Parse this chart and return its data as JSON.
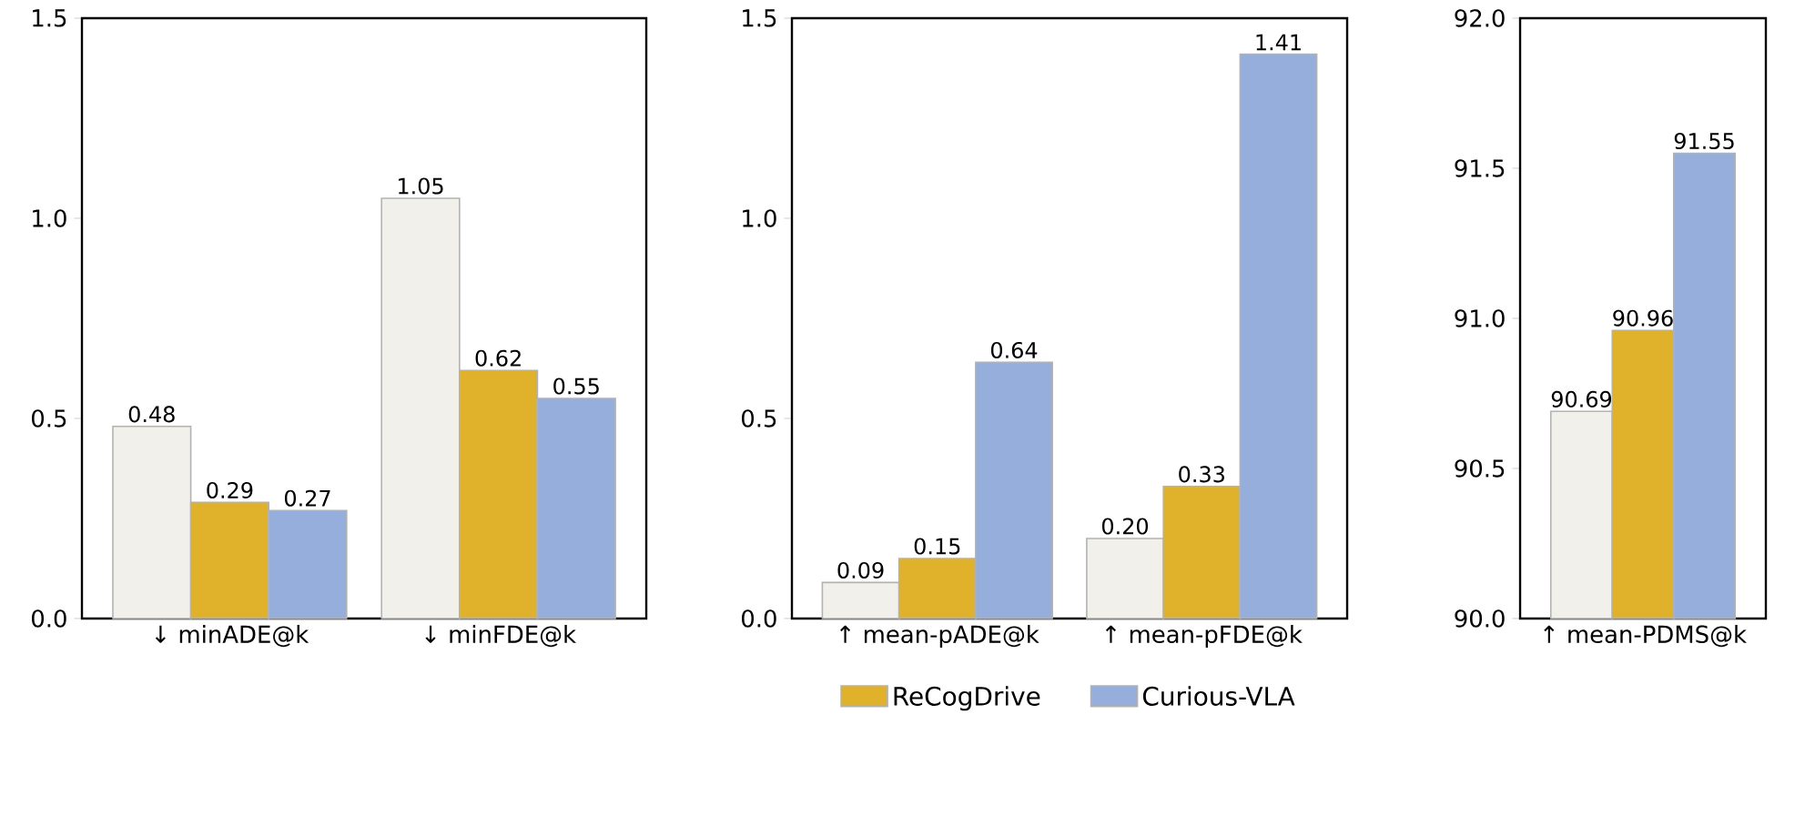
{
  "chart_data": [
    {
      "type": "bar",
      "categories": [
        "↓ minADE@k",
        "↓ minFDE@k"
      ],
      "ylim": [
        0,
        1.5
      ],
      "yticks": [
        {
          "value": 0,
          "label": "0.0"
        },
        {
          "value": 0.5,
          "label": "0.5"
        },
        {
          "value": 1.0,
          "label": "1.0"
        },
        {
          "value": 1.5,
          "label": "1.5"
        }
      ],
      "series": [
        {
          "color": "#f2f0eb",
          "values": [
            0.48,
            1.05
          ],
          "value_labels": [
            "0.48",
            "1.05"
          ]
        },
        {
          "color": "#e0b12a",
          "values": [
            0.29,
            0.62
          ],
          "value_labels": [
            "0.29",
            "0.62"
          ]
        },
        {
          "color": "#96aedb",
          "values": [
            0.27,
            0.55
          ],
          "value_labels": [
            "0.27",
            "0.55"
          ]
        }
      ]
    },
    {
      "type": "bar",
      "categories": [
        "↑ mean-pADE@k",
        "↑ mean-pFDE@k"
      ],
      "ylim": [
        0,
        1.5
      ],
      "yticks": [
        {
          "value": 0,
          "label": "0.0"
        },
        {
          "value": 0.5,
          "label": "0.5"
        },
        {
          "value": 1.0,
          "label": "1.0"
        },
        {
          "value": 1.5,
          "label": "1.5"
        }
      ],
      "legend": "bottom",
      "series": [
        {
          "color": "#f2f0eb",
          "values": [
            0.09,
            0.2
          ],
          "value_labels": [
            "0.09",
            "0.20"
          ]
        },
        {
          "name": "ReCogDrive",
          "color": "#e0b12a",
          "values": [
            0.15,
            0.33
          ],
          "value_labels": [
            "0.15",
            "0.33"
          ]
        },
        {
          "name": "Curious-VLA",
          "color": "#96aedb",
          "values": [
            0.64,
            1.41
          ],
          "value_labels": [
            "0.64",
            "1.41"
          ]
        }
      ]
    },
    {
      "type": "bar",
      "categories": [
        "↑ mean-PDMS@k"
      ],
      "ylim": [
        90,
        92
      ],
      "yticks": [
        {
          "value": 90,
          "label": "90.0"
        },
        {
          "value": 90.5,
          "label": "90.5"
        },
        {
          "value": 91,
          "label": "91.0"
        },
        {
          "value": 91.5,
          "label": "91.5"
        },
        {
          "value": 92,
          "label": "92.0"
        }
      ],
      "series": [
        {
          "color": "#f2f0eb",
          "values": [
            90.69
          ],
          "value_labels": [
            "90.69"
          ]
        },
        {
          "color": "#e0b12a",
          "values": [
            90.96
          ],
          "value_labels": [
            "90.96"
          ]
        },
        {
          "color": "#96aedb",
          "values": [
            91.55
          ],
          "value_labels": [
            "91.55"
          ]
        }
      ]
    }
  ]
}
